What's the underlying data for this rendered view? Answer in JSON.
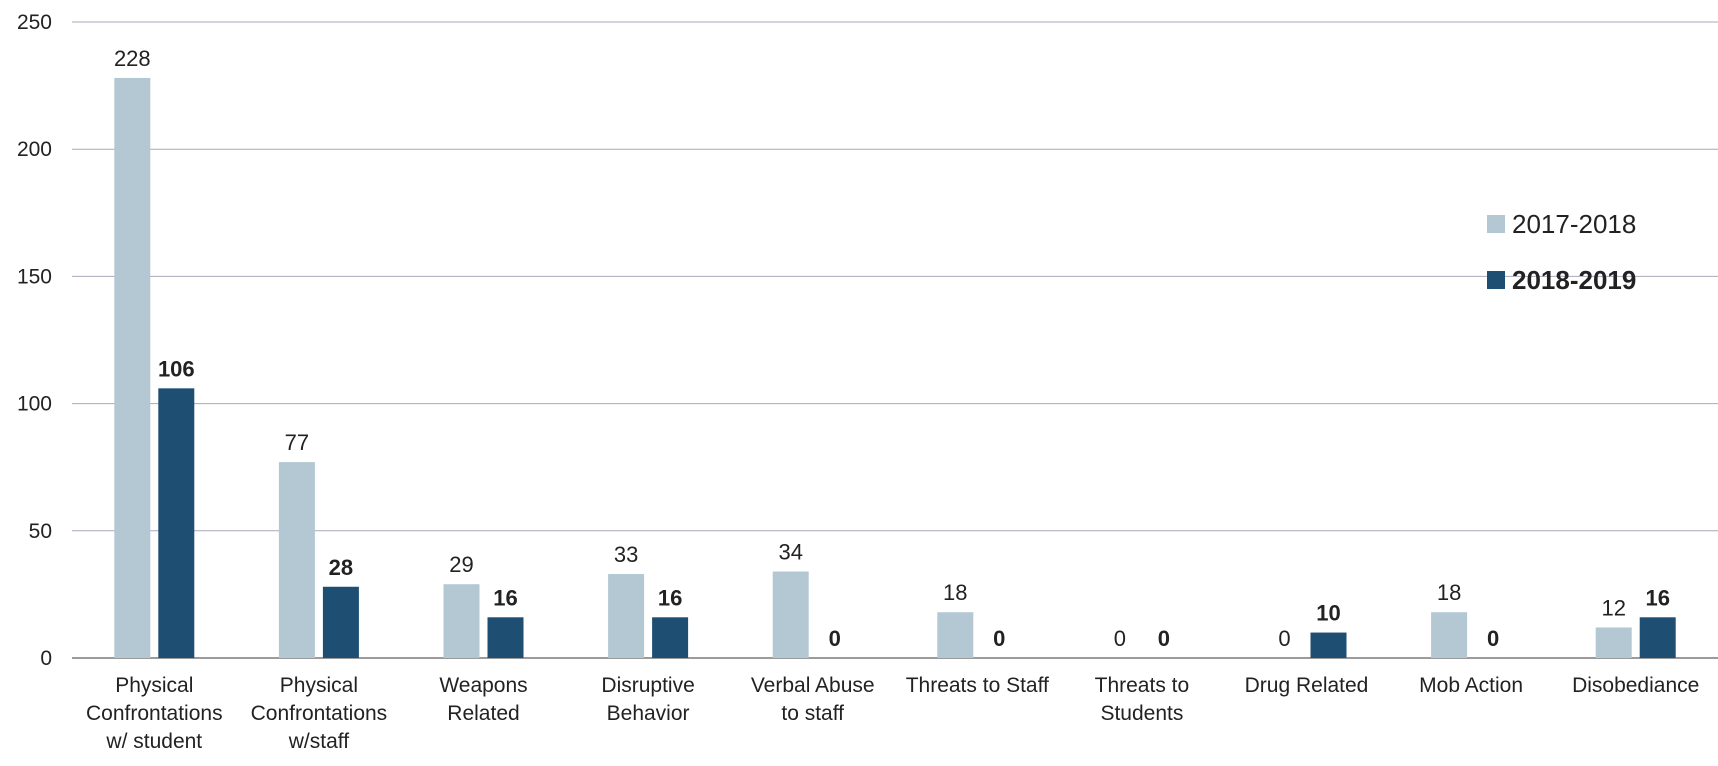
{
  "chart_data": {
    "type": "bar",
    "categories": [
      [
        "Physical",
        "Confrontations",
        "w/ student"
      ],
      [
        "Physical",
        "Confrontations",
        "w/staff"
      ],
      [
        "Weapons",
        "Related"
      ],
      [
        "Disruptive",
        "Behavior"
      ],
      [
        "Verbal Abuse",
        "to staff"
      ],
      [
        "Threats to Staff"
      ],
      [
        "Threats to",
        "Students"
      ],
      [
        "Drug Related"
      ],
      [
        "Mob Action"
      ],
      [
        "Disobediance"
      ]
    ],
    "series": [
      {
        "name": "2017-2018",
        "values": [
          228,
          77,
          29,
          33,
          34,
          18,
          0,
          0,
          18,
          12
        ],
        "color": "#b3c8d3",
        "label_bold": false
      },
      {
        "name": "2018-2019",
        "values": [
          106,
          28,
          16,
          16,
          0,
          0,
          0,
          10,
          0,
          16
        ],
        "color": "#1f4e73",
        "label_bold": true
      }
    ],
    "yticks": [
      "0",
      "50",
      "100",
      "150",
      "200",
      "250"
    ],
    "ylim": [
      0,
      250
    ],
    "grid": true,
    "legend_position": "right",
    "title": "",
    "xlabel": "",
    "ylabel": ""
  }
}
